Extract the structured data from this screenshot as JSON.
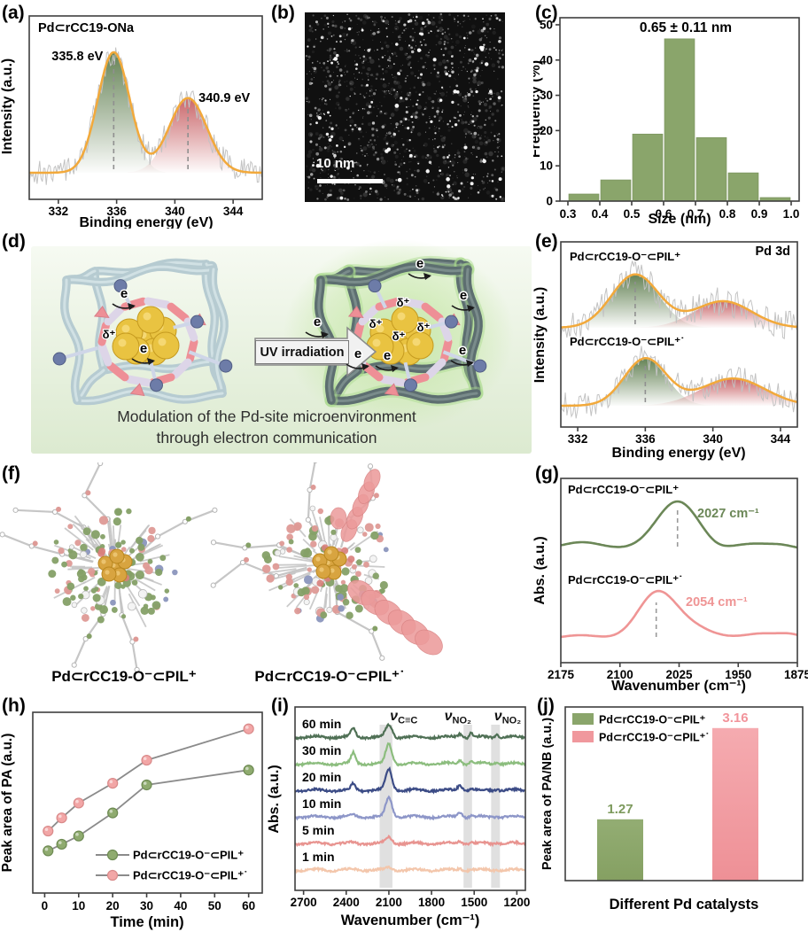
{
  "colors": {
    "fit_orange": "#f2a93b",
    "xps_green": "#5e7d4e",
    "xps_red": "#c75f63",
    "raw_gray": "#c3c3c3",
    "sage_green": "#8aa56b",
    "soft_pink": "#f0989d",
    "axis": "#3f3f3f"
  },
  "panels": {
    "a": {
      "label": "(a)"
    },
    "b": {
      "label": "(b)",
      "scalebar": "10 nm"
    },
    "c": {
      "label": "(c)"
    },
    "d": {
      "label": "(d)",
      "arrow_label": "UV irradiation",
      "caption_line1": "Modulation of the Pd-site microenvironment",
      "caption_line2": "through electron communication",
      "electron_symbol": "e",
      "delta_symbol": "δ⁺"
    },
    "e": {
      "label": "(e)"
    },
    "f": {
      "label": "(f)",
      "left_caption": "Pd⊂rCC19-O⁻⊂PIL⁺",
      "right_caption": "Pd⊂rCC19-O⁻⊂PIL⁺˙"
    },
    "g": {
      "label": "(g)"
    },
    "h": {
      "label": "(h)"
    },
    "i": {
      "label": "(i)"
    },
    "j": {
      "label": "(j)"
    }
  },
  "chart_data": [
    {
      "id": "a",
      "type": "line",
      "subtype": "xps-spectrum",
      "title": "Pd⊂rCC19-ONa",
      "xlabel": "Binding energy (eV)",
      "ylabel": "Intensity (a.u.)",
      "xlim": [
        330,
        346
      ],
      "xticks": [
        332,
        336,
        340,
        344
      ],
      "fit_color": "#f2a93b",
      "raw_color": "#c3c3c3",
      "peaks": [
        {
          "center": 335.8,
          "sigma": 1.1,
          "height": 1.0,
          "label": "335.8 eV",
          "color": "#5e7d4e",
          "dashed": true
        },
        {
          "center": 340.9,
          "sigma": 1.3,
          "height": 0.62,
          "label": "340.9 eV",
          "color": "#c75f63",
          "dashed": true
        }
      ]
    },
    {
      "id": "c",
      "type": "bar",
      "subtype": "histogram",
      "title": "0.65 ± 0.11 nm",
      "xlabel": "Size (nm)",
      "ylabel": "Frequency (%)",
      "categories": [
        0.35,
        0.45,
        0.55,
        0.65,
        0.75,
        0.85,
        0.95
      ],
      "values": [
        2,
        6,
        19,
        46,
        18,
        8,
        1
      ],
      "bar_width": 0.094,
      "xticks": [
        "0.3",
        "0.4",
        "0.5",
        "0.6",
        "0.7",
        "0.8",
        "0.9",
        "1.0"
      ],
      "yticks": [
        0,
        10,
        20,
        30,
        40,
        50
      ],
      "xlim": [
        0.275,
        1.025
      ],
      "ylim": [
        0,
        52
      ],
      "bar_color": "#8aa56b"
    },
    {
      "id": "e",
      "type": "line",
      "subtype": "xps-spectrum",
      "corner_label": "Pd 3d",
      "xlabel": "Binding energy (eV)",
      "ylabel": "Intensity (a.u.)",
      "xlim": [
        331,
        345
      ],
      "xticks": [
        332,
        336,
        340,
        344
      ],
      "fit_color": "#f2a93b",
      "raw_color": "#c3c3c3",
      "series": [
        {
          "name": "Pd⊂rCC19-O⁻⊂PIL⁺",
          "peaks": [
            {
              "center": 335.4,
              "sigma": 1.4,
              "height": 1.0,
              "color": "#5e7d4e",
              "dashed": true
            },
            {
              "center": 340.6,
              "sigma": 1.7,
              "height": 0.5,
              "color": "#c75f63",
              "dashed": false
            }
          ]
        },
        {
          "name": "Pd⊂rCC19-O⁻⊂PIL⁺˙",
          "peaks": [
            {
              "center": 336.0,
              "sigma": 1.25,
              "height": 1.0,
              "color": "#5e7d4e",
              "dashed": true
            },
            {
              "center": 341.2,
              "sigma": 1.9,
              "height": 0.58,
              "color": "#c75f63",
              "dashed": false
            }
          ]
        }
      ]
    },
    {
      "id": "g",
      "type": "line",
      "subtype": "ftir",
      "xlabel": "Wavenumber (cm⁻¹)",
      "ylabel": "Abs. (a.u.)",
      "xlim": [
        2175,
        1875
      ],
      "xticks": [
        2175,
        2100,
        2025,
        1950,
        1875
      ],
      "series": [
        {
          "name": "Pd⊂rCC19-O⁻⊂PIL⁺",
          "color": "#6b8757",
          "peak_center": 2027,
          "peak_label": "2027 cm⁻¹"
        },
        {
          "name": "Pd⊂rCC19-O⁻⊂PIL⁺˙",
          "color": "#ef9595",
          "peak_center": 2054,
          "peak_label": "2054 cm⁻¹"
        }
      ]
    },
    {
      "id": "h",
      "type": "line",
      "subtype": "kinetics",
      "xlabel": "Time (min)",
      "ylabel": "Peak area of PA (a.u.)",
      "x": [
        1,
        5,
        10,
        20,
        30,
        60
      ],
      "xticks": [
        0,
        10,
        20,
        30,
        40,
        50,
        60
      ],
      "xlim": [
        -3.5,
        64
      ],
      "connector_color": "#8b8b8b",
      "series": [
        {
          "name": "Pd⊂rCC19-O⁻⊂PIL⁺",
          "color": "#8fab6f",
          "edge": "#6d8a52",
          "values": [
            0.17,
            0.21,
            0.26,
            0.4,
            0.57,
            0.66
          ]
        },
        {
          "name": "Pd⊂rCC19-O⁻⊂PIL⁺˙",
          "color": "#f2a6a6",
          "edge": "#d98a8a",
          "values": [
            0.29,
            0.37,
            0.46,
            0.58,
            0.72,
            0.91
          ]
        }
      ]
    },
    {
      "id": "i",
      "type": "line",
      "subtype": "ftir-time-series",
      "xlabel": "Wavenumber (cm⁻¹)",
      "ylabel": "Abs. (a.u.)",
      "xlim": [
        2760,
        1140
      ],
      "xticks": [
        2700,
        2400,
        2100,
        1800,
        1500,
        1200
      ],
      "peak_centers": [
        2350,
        2100,
        1600,
        1520,
        1340
      ],
      "band_color": "#d8d8d8",
      "bands": [
        {
          "center": 2120,
          "width": 90,
          "label_main": "ν",
          "label_sub": "C≡C",
          "label_x": 1995
        },
        {
          "center": 1545,
          "width": 60,
          "label_main": "ν",
          "label_sub": "NO₂",
          "label_x": 1615
        },
        {
          "center": 1350,
          "width": 62,
          "label_main": "ν",
          "label_sub": "NO₂",
          "label_x": 1265
        }
      ],
      "traces": [
        {
          "name": "60 min",
          "color": "#4f7055",
          "amps": [
            10,
            14,
            4,
            5,
            4
          ]
        },
        {
          "name": "30 min",
          "color": "#8cbd7e",
          "amps": [
            12,
            22,
            4,
            3,
            3
          ]
        },
        {
          "name": "20 min",
          "color": "#3c4c86",
          "amps": [
            7,
            24,
            6,
            2,
            2
          ]
        },
        {
          "name": "10 min",
          "color": "#8d96c8",
          "amps": [
            2,
            22,
            5,
            2,
            1
          ]
        },
        {
          "name": "5 min",
          "color": "#e89490",
          "amps": [
            1,
            7,
            3,
            1,
            1
          ]
        },
        {
          "name": "1 min",
          "color": "#f3c6ab",
          "amps": [
            1,
            3,
            2,
            1,
            1
          ]
        }
      ]
    },
    {
      "id": "j",
      "type": "bar",
      "subtype": "comparison",
      "xlabel": "Different Pd catalysts",
      "ylabel": "Peak area of PA/NB (a.u.)",
      "categories": [
        "Pd⊂rCC19-O⁻⊂PIL⁺",
        "Pd⊂rCC19-O⁻⊂PIL⁺˙"
      ],
      "values": [
        1.27,
        3.16
      ],
      "value_labels": [
        "1.27",
        "3.16"
      ],
      "bar_colors": [
        "#8aa56b",
        "#f0989d"
      ],
      "label_colors": [
        "#7d9a5d",
        "#f2949b"
      ],
      "ylim": [
        0,
        3.45
      ]
    }
  ]
}
